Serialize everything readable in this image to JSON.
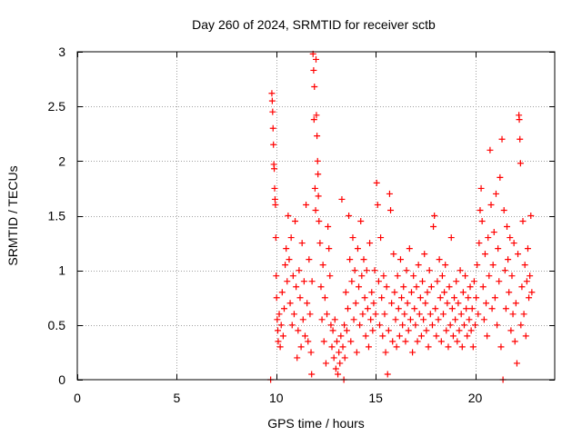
{
  "chart_data": {
    "type": "scatter",
    "title": "Day 260 of 2024, SRMTID for receiver sctb",
    "xlabel": "GPS time / hours",
    "ylabel": "SRMTID / TECUs",
    "xlim": [
      0,
      24
    ],
    "ylim": [
      0,
      3
    ],
    "xticks": [
      {
        "value": 0,
        "label": "0"
      },
      {
        "value": 5,
        "label": "5"
      },
      {
        "value": 10,
        "label": "10"
      },
      {
        "value": 15,
        "label": "15"
      },
      {
        "value": 20,
        "label": "20"
      }
    ],
    "yticks": [
      {
        "value": 0,
        "label": "0"
      },
      {
        "value": 0.5,
        "label": "0.5"
      },
      {
        "value": 1,
        "label": "1"
      },
      {
        "value": 1.5,
        "label": "1.5"
      },
      {
        "value": 2,
        "label": "2"
      },
      {
        "value": 2.5,
        "label": "2.5"
      },
      {
        "value": 3,
        "label": "3"
      }
    ],
    "grid": true,
    "marker": "+",
    "series": [
      {
        "name": "SRMTID",
        "color": "#ff0000",
        "points": [
          [
            9.72,
            0.0
          ],
          [
            9.78,
            2.62
          ],
          [
            9.8,
            2.55
          ],
          [
            9.82,
            2.45
          ],
          [
            9.84,
            2.3
          ],
          [
            9.86,
            2.15
          ],
          [
            9.88,
            1.97
          ],
          [
            9.9,
            1.93
          ],
          [
            9.92,
            1.75
          ],
          [
            9.94,
            1.65
          ],
          [
            9.96,
            1.6
          ],
          [
            9.98,
            1.3
          ],
          [
            10.0,
            0.95
          ],
          [
            10.02,
            0.75
          ],
          [
            10.05,
            0.55
          ],
          [
            10.08,
            0.45
          ],
          [
            10.1,
            0.35
          ],
          [
            10.15,
            0.6
          ],
          [
            10.2,
            0.3
          ],
          [
            10.25,
            0.5
          ],
          [
            10.3,
            0.8
          ],
          [
            10.35,
            0.4
          ],
          [
            10.4,
            0.65
          ],
          [
            10.45,
            1.05
          ],
          [
            10.5,
            1.2
          ],
          [
            10.55,
            0.9
          ],
          [
            10.6,
            1.5
          ],
          [
            10.65,
            1.1
          ],
          [
            10.7,
            0.7
          ],
          [
            10.75,
            1.3
          ],
          [
            10.8,
            0.5
          ],
          [
            10.85,
            0.95
          ],
          [
            10.9,
            0.6
          ],
          [
            10.95,
            1.45
          ],
          [
            11.0,
            0.85
          ],
          [
            11.05,
            0.2
          ],
          [
            11.1,
            0.45
          ],
          [
            11.15,
            1.0
          ],
          [
            11.2,
            0.75
          ],
          [
            11.25,
            0.3
          ],
          [
            11.3,
            1.25
          ],
          [
            11.35,
            0.55
          ],
          [
            11.4,
            0.9
          ],
          [
            11.45,
            0.4
          ],
          [
            11.5,
            1.6
          ],
          [
            11.55,
            0.7
          ],
          [
            11.6,
            0.35
          ],
          [
            11.65,
            1.1
          ],
          [
            11.7,
            0.6
          ],
          [
            11.75,
            0.25
          ],
          [
            11.78,
            0.05
          ],
          [
            11.8,
            0.9
          ],
          [
            11.85,
            2.98
          ],
          [
            11.88,
            2.83
          ],
          [
            11.9,
            2.38
          ],
          [
            11.92,
            2.68
          ],
          [
            11.95,
            1.75
          ],
          [
            11.98,
            1.55
          ],
          [
            12.0,
            2.93
          ],
          [
            12.02,
            2.42
          ],
          [
            12.05,
            2.23
          ],
          [
            12.08,
            2.0
          ],
          [
            12.1,
            1.88
          ],
          [
            12.12,
            1.68
          ],
          [
            12.15,
            1.45
          ],
          [
            12.2,
            1.25
          ],
          [
            12.25,
            0.85
          ],
          [
            12.3,
            0.55
          ],
          [
            12.35,
            1.05
          ],
          [
            12.4,
            0.35
          ],
          [
            12.45,
            0.75
          ],
          [
            12.5,
            0.15
          ],
          [
            12.55,
            0.6
          ],
          [
            12.6,
            1.4
          ],
          [
            12.65,
            1.2
          ],
          [
            12.7,
            0.95
          ],
          [
            12.75,
            0.5
          ],
          [
            12.8,
            0.3
          ],
          [
            12.85,
            0.45
          ],
          [
            12.9,
            0.2
          ],
          [
            12.95,
            0.55
          ],
          [
            13.0,
            0.1
          ],
          [
            13.05,
            0.35
          ],
          [
            13.1,
            0.05
          ],
          [
            13.15,
            0.25
          ],
          [
            13.2,
            0.15
          ],
          [
            13.25,
            0.4
          ],
          [
            13.3,
            1.65
          ],
          [
            13.35,
            0.3
          ],
          [
            13.4,
            0.0
          ],
          [
            13.42,
            0.5
          ],
          [
            13.45,
            0.2
          ],
          [
            13.5,
            0.8
          ],
          [
            13.55,
            0.45
          ],
          [
            13.6,
            0.65
          ],
          [
            13.65,
            1.5
          ],
          [
            13.7,
            1.1
          ],
          [
            13.75,
            0.35
          ],
          [
            13.8,
            0.9
          ],
          [
            13.85,
            1.3
          ],
          [
            13.9,
            0.55
          ],
          [
            13.95,
            1.0
          ],
          [
            14.0,
            0.7
          ],
          [
            14.05,
            0.25
          ],
          [
            14.1,
            1.2
          ],
          [
            14.15,
            0.85
          ],
          [
            14.2,
            0.5
          ],
          [
            14.25,
            1.45
          ],
          [
            14.3,
            0.95
          ],
          [
            14.35,
            0.6
          ],
          [
            14.4,
            1.1
          ],
          [
            14.45,
            0.75
          ],
          [
            14.5,
            0.4
          ],
          [
            14.55,
            1.0
          ],
          [
            14.6,
            0.65
          ],
          [
            14.65,
            0.3
          ],
          [
            14.7,
            1.25
          ],
          [
            14.75,
            0.55
          ],
          [
            14.8,
            0.8
          ],
          [
            14.85,
            0.45
          ],
          [
            14.9,
            0.7
          ],
          [
            14.95,
            1.0
          ],
          [
            15.0,
            0.6
          ],
          [
            15.05,
            1.8
          ],
          [
            15.1,
            1.6
          ],
          [
            15.15,
            0.9
          ],
          [
            15.2,
            0.5
          ],
          [
            15.25,
            1.3
          ],
          [
            15.3,
            0.75
          ],
          [
            15.35,
            0.4
          ],
          [
            15.4,
            0.95
          ],
          [
            15.45,
            0.6
          ],
          [
            15.5,
            0.25
          ],
          [
            15.55,
            0.85
          ],
          [
            15.6,
            0.05
          ],
          [
            15.65,
            0.45
          ],
          [
            15.7,
            1.7
          ],
          [
            15.75,
            1.55
          ],
          [
            15.8,
            0.7
          ],
          [
            15.85,
            0.35
          ],
          [
            15.9,
            1.15
          ],
          [
            15.95,
            0.8
          ],
          [
            16.0,
            0.55
          ],
          [
            16.05,
            0.3
          ],
          [
            16.1,
            0.95
          ],
          [
            16.15,
            0.65
          ],
          [
            16.2,
            0.4
          ],
          [
            16.25,
            1.1
          ],
          [
            16.3,
            0.75
          ],
          [
            16.35,
            0.5
          ],
          [
            16.4,
            0.85
          ],
          [
            16.45,
            0.6
          ],
          [
            16.5,
            0.35
          ],
          [
            16.55,
            1.0
          ],
          [
            16.6,
            0.7
          ],
          [
            16.65,
            0.45
          ],
          [
            16.7,
            1.2
          ],
          [
            16.75,
            0.55
          ],
          [
            16.8,
            0.8
          ],
          [
            16.85,
            0.25
          ],
          [
            16.9,
            0.95
          ],
          [
            16.95,
            0.65
          ],
          [
            17.0,
            0.5
          ],
          [
            17.05,
            0.85
          ],
          [
            17.1,
            0.35
          ],
          [
            17.15,
            1.05
          ],
          [
            17.2,
            0.6
          ],
          [
            17.25,
            0.75
          ],
          [
            17.3,
            0.4
          ],
          [
            17.35,
            0.9
          ],
          [
            17.4,
            0.55
          ],
          [
            17.45,
            1.15
          ],
          [
            17.5,
            0.7
          ],
          [
            17.55,
            0.45
          ],
          [
            17.6,
            0.8
          ],
          [
            17.65,
            0.3
          ],
          [
            17.7,
            1.0
          ],
          [
            17.75,
            0.6
          ],
          [
            17.8,
            0.85
          ],
          [
            17.85,
            0.5
          ],
          [
            17.9,
            1.4
          ],
          [
            17.95,
            1.5
          ],
          [
            18.0,
            0.65
          ],
          [
            18.05,
            0.4
          ],
          [
            18.1,
            0.9
          ],
          [
            18.15,
            0.55
          ],
          [
            18.2,
            1.1
          ],
          [
            18.25,
            0.75
          ],
          [
            18.3,
            0.35
          ],
          [
            18.35,
            0.95
          ],
          [
            18.4,
            0.6
          ],
          [
            18.45,
            0.8
          ],
          [
            18.5,
            1.05
          ],
          [
            18.55,
            0.45
          ],
          [
            18.6,
            0.7
          ],
          [
            18.65,
            0.3
          ],
          [
            18.7,
            0.85
          ],
          [
            18.75,
            0.5
          ],
          [
            18.8,
            1.3
          ],
          [
            18.85,
            0.65
          ],
          [
            18.9,
            0.4
          ],
          [
            18.95,
            0.75
          ],
          [
            19.0,
            0.55
          ],
          [
            19.05,
            0.9
          ],
          [
            19.1,
            0.35
          ],
          [
            19.15,
            0.7
          ],
          [
            19.2,
            0.45
          ],
          [
            19.25,
            1.0
          ],
          [
            19.3,
            0.6
          ],
          [
            19.35,
            0.3
          ],
          [
            19.4,
            0.8
          ],
          [
            19.45,
            0.5
          ],
          [
            19.5,
            0.95
          ],
          [
            19.55,
            0.65
          ],
          [
            19.6,
            0.4
          ],
          [
            19.65,
            0.75
          ],
          [
            19.7,
            0.55
          ],
          [
            19.75,
            0.85
          ],
          [
            19.8,
            0.45
          ],
          [
            19.85,
            0.65
          ],
          [
            19.9,
            0.3
          ],
          [
            19.95,
            0.9
          ],
          [
            20.0,
            0.5
          ],
          [
            20.05,
            0.75
          ],
          [
            20.1,
            1.05
          ],
          [
            20.15,
            0.6
          ],
          [
            20.2,
            1.25
          ],
          [
            20.25,
            1.55
          ],
          [
            20.3,
            1.75
          ],
          [
            20.35,
            1.45
          ],
          [
            20.4,
            0.85
          ],
          [
            20.45,
            0.55
          ],
          [
            20.5,
            1.15
          ],
          [
            20.55,
            0.7
          ],
          [
            20.6,
            0.4
          ],
          [
            20.65,
            1.3
          ],
          [
            20.7,
            0.95
          ],
          [
            20.75,
            2.1
          ],
          [
            20.8,
            1.6
          ],
          [
            20.85,
            0.65
          ],
          [
            20.9,
            1.05
          ],
          [
            20.95,
            1.35
          ],
          [
            21.0,
            0.75
          ],
          [
            21.05,
            1.7
          ],
          [
            21.1,
            0.5
          ],
          [
            21.15,
            1.2
          ],
          [
            21.2,
            0.9
          ],
          [
            21.25,
            1.85
          ],
          [
            21.3,
            0.3
          ],
          [
            21.35,
            2.2
          ],
          [
            21.4,
            0.0
          ],
          [
            21.45,
            1.55
          ],
          [
            21.5,
            1.0
          ],
          [
            21.55,
            0.65
          ],
          [
            21.6,
            1.4
          ],
          [
            21.65,
            1.1
          ],
          [
            21.7,
            0.8
          ],
          [
            21.75,
            1.3
          ],
          [
            21.8,
            0.45
          ],
          [
            21.85,
            0.95
          ],
          [
            21.9,
            0.6
          ],
          [
            21.95,
            1.25
          ],
          [
            22.0,
            0.35
          ],
          [
            22.05,
            0.7
          ],
          [
            22.1,
            0.15
          ],
          [
            22.15,
            1.15
          ],
          [
            22.2,
            2.42
          ],
          [
            22.22,
            2.38
          ],
          [
            22.25,
            2.2
          ],
          [
            22.28,
            1.98
          ],
          [
            22.3,
            0.5
          ],
          [
            22.35,
            0.85
          ],
          [
            22.4,
            1.45
          ],
          [
            22.45,
            0.6
          ],
          [
            22.5,
            1.05
          ],
          [
            22.55,
            0.4
          ],
          [
            22.6,
            0.9
          ],
          [
            22.65,
            1.2
          ],
          [
            22.7,
            0.75
          ],
          [
            22.75,
            0.95
          ],
          [
            22.8,
            1.5
          ],
          [
            22.85,
            0.8
          ]
        ]
      }
    ]
  }
}
